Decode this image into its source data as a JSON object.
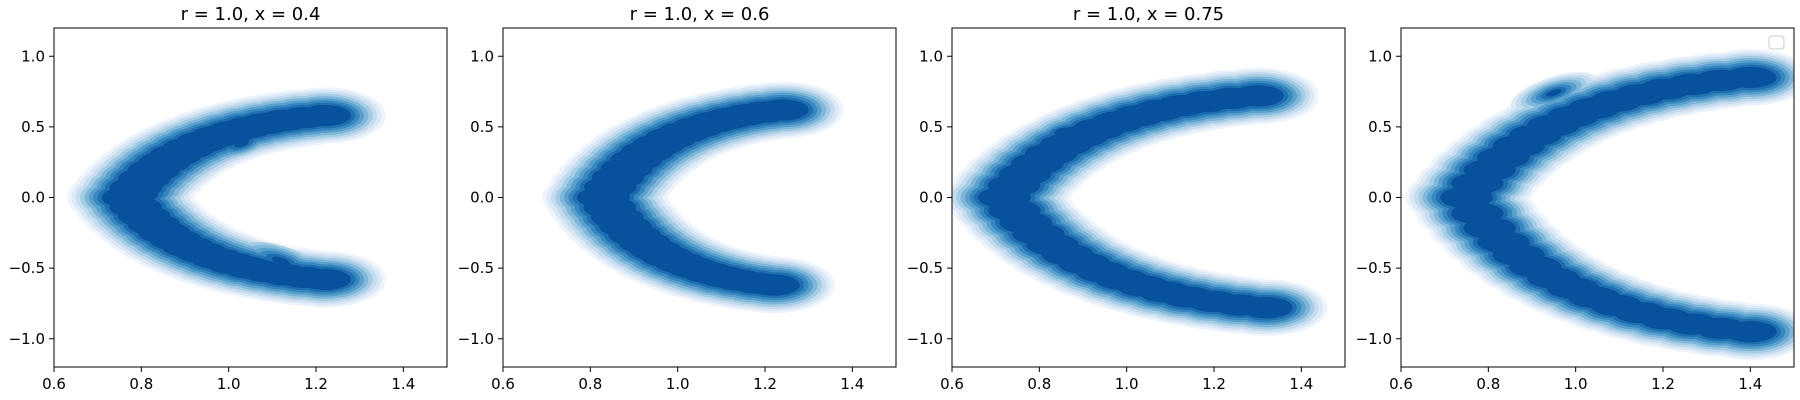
{
  "chart_data": [
    {
      "type": "contour",
      "title": "r = 1.0, x = 0.4",
      "xlim": [
        0.6,
        1.5
      ],
      "ylim": [
        -1.2,
        1.2
      ],
      "xticks": [
        0.6,
        0.8,
        1.0,
        1.2,
        1.4
      ],
      "xtick_labels": [
        "0.6",
        "0.8",
        "1.0",
        "1.2",
        "1.4"
      ],
      "yticks": [
        -1.0,
        -0.5,
        0.0,
        0.5,
        1.0
      ],
      "ytick_labels": [
        "−1.0",
        "−0.5",
        "0.0",
        "0.5",
        "1.0"
      ],
      "density_peaks": [
        {
          "x": 1.03,
          "y": 0.38,
          "w": 1.0
        },
        {
          "x": 0.82,
          "y": 0.0,
          "w": 0.75
        },
        {
          "x": 1.12,
          "y": -0.45,
          "w": 0.55
        }
      ],
      "shape": {
        "arm_upper_end": [
          1.22,
          0.58
        ],
        "arm_lower_end": [
          1.22,
          -0.58
        ],
        "vertex": [
          0.77,
          0.0
        ]
      }
    },
    {
      "type": "contour",
      "title": "r = 1.0, x = 0.6",
      "xlim": [
        0.6,
        1.5
      ],
      "ylim": [
        -1.2,
        1.2
      ],
      "xticks": [
        0.6,
        0.8,
        1.0,
        1.2,
        1.4
      ],
      "xtick_labels": [
        "0.6",
        "0.8",
        "1.0",
        "1.2",
        "1.4"
      ],
      "yticks": [
        -1.0,
        -0.5,
        0.0,
        0.5,
        1.0
      ],
      "ytick_labels": [
        "−1.0",
        "−0.5",
        "0.0",
        "0.5",
        "1.0"
      ],
      "density_peaks": [
        {
          "x": 0.91,
          "y": -0.3,
          "w": 1.0
        },
        {
          "x": 1.18,
          "y": 0.6,
          "w": 0.8
        },
        {
          "x": 1.1,
          "y": -0.55,
          "w": 0.7
        }
      ],
      "shape": {
        "arm_upper_end": [
          1.24,
          0.62
        ],
        "arm_lower_end": [
          1.22,
          -0.62
        ],
        "vertex": [
          0.83,
          0.0
        ]
      }
    },
    {
      "type": "contour",
      "title": "r = 1.0, x = 0.75",
      "xlim": [
        0.6,
        1.5
      ],
      "ylim": [
        -1.2,
        1.2
      ],
      "xticks": [
        0.6,
        0.8,
        1.0,
        1.2,
        1.4
      ],
      "xtick_labels": [
        "0.6",
        "0.8",
        "1.0",
        "1.2",
        "1.4"
      ],
      "yticks": [
        -1.0,
        -0.5,
        0.0,
        0.5,
        1.0
      ],
      "ytick_labels": [
        "−1.0",
        "−0.5",
        "0.0",
        "0.5",
        "1.0"
      ],
      "density_peaks": [
        {
          "x": 0.85,
          "y": 0.47,
          "w": 1.0
        },
        {
          "x": 0.88,
          "y": -0.38,
          "w": 0.95
        },
        {
          "x": 1.05,
          "y": -0.58,
          "w": 0.7
        }
      ],
      "shape": {
        "arm_upper_end": [
          1.3,
          0.72
        ],
        "arm_lower_end": [
          1.32,
          -0.78
        ],
        "vertex": [
          0.72,
          0.0
        ]
      }
    },
    {
      "type": "contour",
      "title": "",
      "xlim": [
        0.6,
        1.5
      ],
      "ylim": [
        -1.2,
        1.2
      ],
      "xticks": [
        0.6,
        0.8,
        1.0,
        1.2,
        1.4
      ],
      "xtick_labels": [
        "0.6",
        "0.8",
        "1.0",
        "1.2",
        "1.4"
      ],
      "yticks": [
        -1.0,
        -0.5,
        0.0,
        0.5,
        1.0
      ],
      "ytick_labels": [
        "−1.0",
        "−0.5",
        "0.0",
        "0.5",
        "1.0"
      ],
      "legend": "upper-right (empty)",
      "density_peaks": [
        {
          "x": 0.95,
          "y": 0.74,
          "w": 0.9
        },
        {
          "x": 1.06,
          "y": -0.8,
          "w": 1.0
        }
      ],
      "shape": {
        "arm_upper_end": [
          1.4,
          0.85
        ],
        "arm_lower_end": [
          1.4,
          -0.95
        ],
        "vertex": [
          0.75,
          0.0
        ]
      }
    }
  ],
  "colors": {
    "levels": [
      "#eef4fb",
      "#dbe9f6",
      "#c6dbef",
      "#a4cce3",
      "#7fb7da",
      "#5b9fcd",
      "#3787c0",
      "#1f6fb0",
      "#08519c"
    ],
    "axes": "#000000"
  }
}
